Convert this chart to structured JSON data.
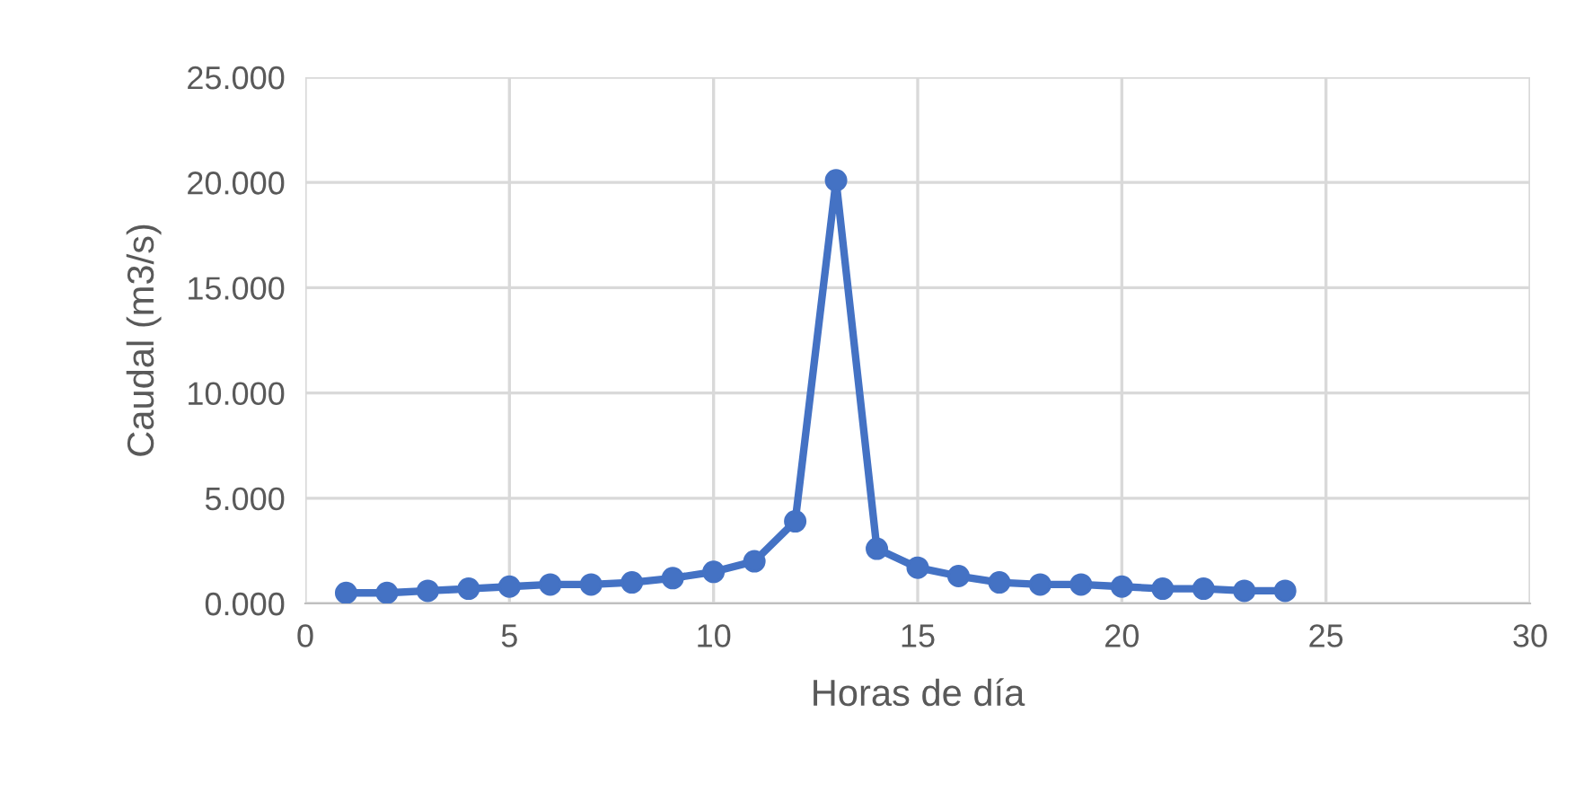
{
  "chart_data": {
    "type": "line",
    "xlabel": "Horas de día",
    "ylabel": "Caudal (m3/s)",
    "xlim": [
      0,
      30
    ],
    "xticks": [
      0,
      5,
      10,
      15,
      20,
      25,
      30
    ],
    "ylim": [
      0,
      25
    ],
    "yticks": [
      {
        "value": 0,
        "label": "0.000"
      },
      {
        "value": 5,
        "label": "5.000"
      },
      {
        "value": 10,
        "label": "10.000"
      },
      {
        "value": 15,
        "label": "15.000"
      },
      {
        "value": 20,
        "label": "20.000"
      },
      {
        "value": 25,
        "label": "25.000"
      }
    ],
    "grid": true,
    "marker": "circle",
    "line_style": "solid",
    "legend": false,
    "series": [
      {
        "color": "#4472c4",
        "x": [
          1,
          2,
          3,
          4,
          5,
          6,
          7,
          8,
          9,
          10,
          11,
          12,
          13,
          14,
          15,
          16,
          17,
          18,
          19,
          20,
          21,
          22,
          23,
          24
        ],
        "values": [
          0.5,
          0.5,
          0.6,
          0.7,
          0.8,
          0.9,
          0.9,
          1.0,
          1.2,
          1.5,
          2.0,
          3.9,
          20.1,
          2.6,
          1.7,
          1.3,
          1.0,
          0.9,
          0.9,
          0.8,
          0.7,
          0.7,
          0.6,
          0.6
        ]
      }
    ]
  }
}
